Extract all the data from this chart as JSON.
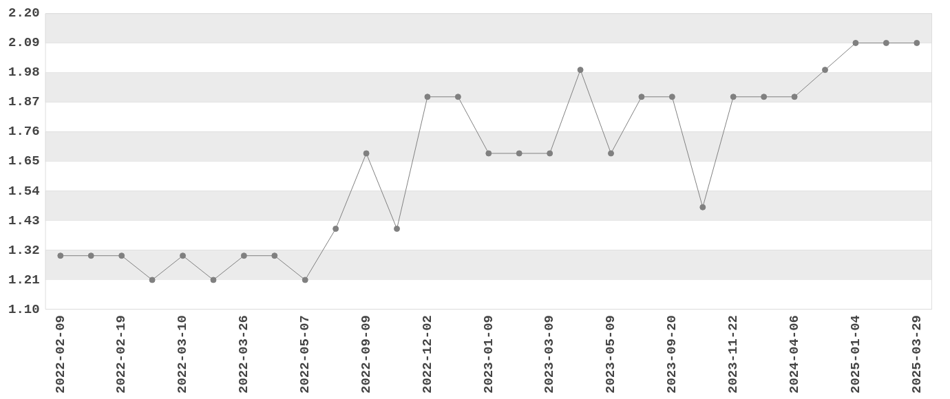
{
  "chart_data": {
    "type": "line",
    "categories": [
      "2022-02-09",
      null,
      "2022-02-19",
      null,
      "2022-03-10",
      null,
      "2022-03-26",
      null,
      "2022-05-07",
      null,
      "2022-09-09",
      null,
      "2022-12-02",
      null,
      "2023-01-09",
      null,
      "2023-03-09",
      null,
      "2023-05-09",
      null,
      "2023-09-20",
      null,
      "2023-11-22",
      null,
      "2024-04-06",
      null,
      "2025-01-04",
      null,
      "2025-03-29"
    ],
    "series": [
      {
        "color": "#808080",
        "values": [
          1.3,
          1.3,
          1.3,
          1.21,
          1.3,
          1.21,
          1.3,
          1.3,
          1.21,
          1.4,
          1.68,
          1.4,
          1.89,
          1.89,
          1.68,
          1.68,
          1.68,
          1.99,
          1.68,
          1.89,
          1.89,
          1.48,
          1.89,
          1.89,
          1.89,
          1.99,
          2.09,
          2.09,
          2.09
        ]
      }
    ],
    "ylim": [
      1.1,
      2.2
    ],
    "yticks": [
      {
        "value": 1.1,
        "label": "1.10"
      },
      {
        "value": 1.21,
        "label": "1.21"
      },
      {
        "value": 1.32,
        "label": "1.32"
      },
      {
        "value": 1.43,
        "label": "1.43"
      },
      {
        "value": 1.54,
        "label": "1.54"
      },
      {
        "value": 1.65,
        "label": "1.65"
      },
      {
        "value": 1.76,
        "label": "1.76"
      },
      {
        "value": 1.87,
        "label": "1.87"
      },
      {
        "value": 1.98,
        "label": "1.98"
      },
      {
        "value": 2.09,
        "label": "2.09"
      },
      {
        "value": 2.2,
        "label": "2.20"
      }
    ],
    "grid": "y",
    "legend": false,
    "marker": "circle",
    "line_style": "solid"
  }
}
